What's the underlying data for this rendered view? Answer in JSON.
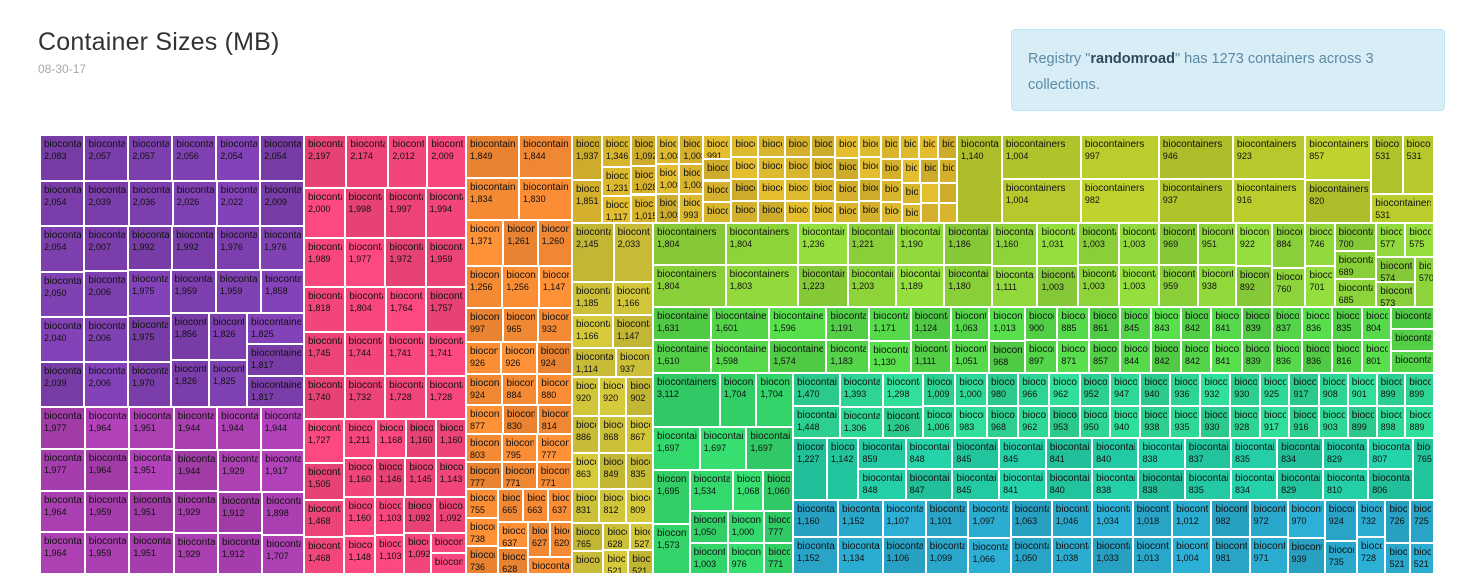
{
  "header": {
    "title": "Container Sizes (MB)",
    "date": "08-30-17"
  },
  "info": {
    "prefix": "Registry \"",
    "registry": "randomroad",
    "suffix": "\" has 1273 containers across 3 collections."
  },
  "chart_data": {
    "type": "treemap",
    "title": "Container Sizes (MB)",
    "name_label": "biocontainers",
    "groups": [
      {
        "color": "#7d3fae",
        "values": [
          2083,
          2057,
          2057,
          2056,
          2054,
          2054,
          2054,
          2054,
          2050,
          2022,
          2009,
          2007,
          2006,
          2006,
          2006,
          2040,
          2039,
          2039,
          2036,
          2026,
          1992,
          1992,
          1976,
          1976,
          1975,
          1975,
          1970,
          1959,
          1959,
          1858,
          1856,
          1826,
          1826,
          1825,
          1825,
          1817,
          1817
        ]
      },
      {
        "color": "#a93fb0",
        "values": [
          1977,
          1977,
          1964,
          1964,
          1964,
          1964,
          1959,
          1959,
          1951,
          1951,
          1951,
          1951,
          1944,
          1944,
          1944,
          1944,
          1929,
          1929,
          1929,
          1917,
          1912,
          1912,
          1898,
          1707
        ]
      },
      {
        "color": "#f2457b",
        "values": [
          1211,
          1168,
          1148,
          1146,
          1145,
          1143,
          1160,
          1160,
          1160,
          1160,
          1103,
          1103,
          1092,
          1092,
          1092,
          717,
          717,
          1764,
          1757,
          1745,
          1744,
          1741,
          1741,
          1740,
          1732,
          1728,
          1728,
          1727,
          1468,
          1468,
          2197,
          2174,
          2012,
          2009,
          1998,
          1994,
          1989,
          1977,
          1972,
          1959,
          2000,
          1997,
          1818,
          1804,
          1505
        ]
      },
      {
        "color": "#f58a34",
        "values": [
          738,
          736,
          628,
          627,
          620,
          618,
          926,
          1147,
          997,
          965,
          932,
          926,
          924,
          924,
          803,
          777,
          771,
          755,
          777,
          771,
          884,
          877,
          814,
          880,
          830,
          795,
          1371,
          1260,
          1256,
          1261,
          1256,
          1849,
          1844,
          1834,
          1830,
          665,
          663,
          637,
          637
        ]
      },
      {
        "color": "#ccc038",
        "values": [
          920,
          920,
          902,
          886,
          849,
          831,
          812,
          630,
          628,
          1185,
          835,
          765,
          1147,
          1114,
          1166,
          1166,
          937,
          2145,
          2033,
          868,
          867,
          863,
          809,
          527,
          521,
          521
        ]
      },
      {
        "color": "#d9b52d",
        "values": [
          525,
          515,
          519,
          523,
          523,
          842,
          842,
          836,
          847,
          837,
          777,
          788,
          767,
          767,
          767,
          767,
          1231,
          1117,
          1028,
          1015,
          991,
          880,
          875,
          872,
          852,
          842,
          733,
          661,
          660,
          656,
          651,
          645,
          643,
          638,
          629,
          636,
          634,
          611,
          1937,
          1851,
          1346,
          1092,
          1003,
          853,
          834,
          729,
          711,
          711,
          1003,
          1003,
          1003,
          1002,
          993,
          832,
          816,
          816,
          700,
          699
        ]
      },
      {
        "color": "#b6c82c",
        "values": [
          1004,
          1004,
          982,
          531,
          531,
          531,
          1140,
          997,
          946,
          937,
          923,
          820,
          916,
          857
        ]
      },
      {
        "color": "#8dd43b",
        "values": [
          1031,
          1003,
          1003,
          1003,
          1003,
          1003,
          1803,
          1223,
          1203,
          1221,
          1189,
          1160,
          1111,
          1804,
          1804,
          1804,
          969,
          951,
          884,
          760,
          700,
          922,
          892,
          959,
          938,
          1190,
          1186,
          746,
          701,
          689,
          685,
          1236,
          1180,
          577,
          575,
          574,
          573,
          570
        ]
      },
      {
        "color": "#54d448",
        "values": [
          900,
          885,
          842,
          816,
          842,
          836,
          842,
          836,
          841,
          835,
          1631,
          1601,
          843,
          837,
          1191,
          1063,
          845,
          839,
          897,
          789,
          1171,
          1051,
          857,
          797,
          841,
          836,
          1610,
          1596,
          844,
          804,
          839,
          801,
          1598,
          1574,
          1130,
          1013,
          968,
          1183,
          1124,
          871,
          861,
          1111,
          793
        ]
      },
      {
        "color": "#33d46a",
        "values": [
          1704,
          1697,
          1704,
          1695,
          1697,
          1697,
          1068,
          1060,
          1050,
          3112,
          1573,
          1534,
          777,
          771,
          1003,
          1000,
          976
        ]
      },
      {
        "color": "#2dd493",
        "values": [
          1006,
          962,
          1009,
          935,
          980,
          968,
          983,
          953,
          1000,
          952,
          966,
          947,
          962,
          950,
          1448,
          930,
          898,
          925,
          899,
          1393,
          940,
          908,
          928,
          899,
          917,
          889,
          938,
          899,
          1470,
          1298,
          1306,
          1206,
          932,
          936,
          917,
          916,
          901,
          903,
          940,
          930
        ]
      },
      {
        "color": "#23c9a2",
        "values": [
          845,
          845,
          838,
          838,
          859,
          806,
          841,
          837,
          841,
          835,
          848,
          845,
          840,
          835,
          847,
          848,
          810,
          840,
          834,
          838,
          829,
          829,
          807,
          1227,
          1142,
          834,
          765
        ]
      },
      {
        "color": "#2aa8cc",
        "values": [
          1152,
          1160,
          1134,
          1106,
          1097,
          1066,
          735,
          732,
          521,
          521,
          1101,
          1107,
          1152,
          1038,
          1099,
          1063,
          1050,
          1046,
          1033,
          1013,
          1012,
          1004,
          1034,
          982,
          981,
          971,
          924,
          1018,
          939,
          970,
          972,
          725,
          726,
          728
        ]
      }
    ]
  }
}
